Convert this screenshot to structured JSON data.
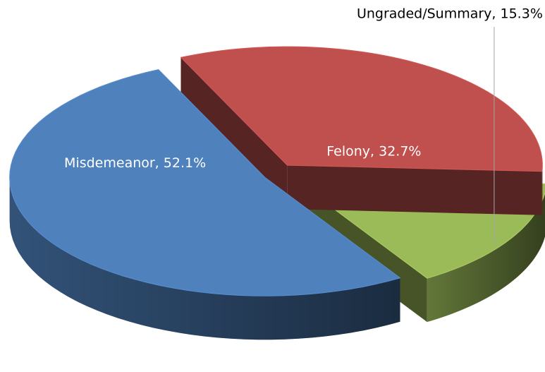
{
  "chart_data": {
    "type": "pie",
    "values": [
      52.1,
      32.7,
      15.3
    ],
    "value_labels": [
      "Misdemeanor, 52.1%",
      "Felony, 32.7%",
      "Ungraded/Summary, 15.3%"
    ],
    "colors": [
      "#4f81bd",
      "#c0504d",
      "#9bbb59"
    ]
  }
}
